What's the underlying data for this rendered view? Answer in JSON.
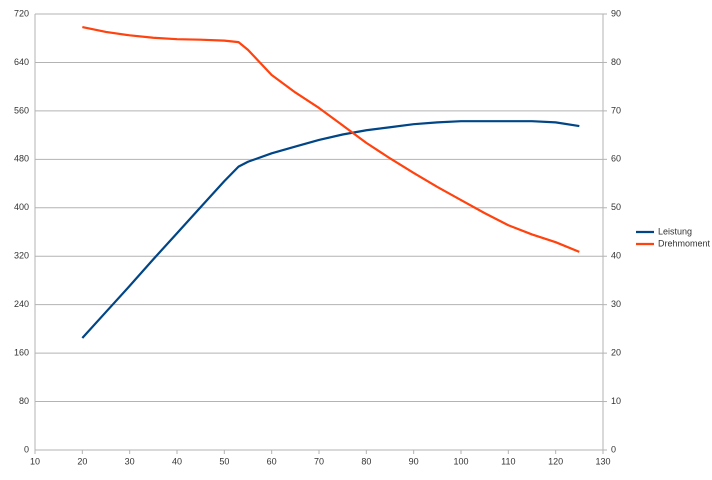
{
  "chart_data": {
    "type": "line",
    "x": [
      20,
      25,
      30,
      35,
      40,
      45,
      50,
      53,
      55,
      60,
      65,
      70,
      75,
      80,
      85,
      90,
      95,
      100,
      105,
      110,
      115,
      120,
      125
    ],
    "series": [
      {
        "name": "Leistung",
        "color": "#004586",
        "values": [
          185,
          228,
          271,
          315,
          358,
          401,
          444,
          468,
          476,
          490,
          501,
          512,
          521,
          528,
          533,
          538,
          541,
          543,
          543,
          543,
          543,
          541,
          535
        ]
      },
      {
        "name": "Drehmoment",
        "color": "#ff420e",
        "axis": "y2",
        "values": [
          87.3,
          86.3,
          85.6,
          85.1,
          84.8,
          84.7,
          84.5,
          84.2,
          82.6,
          77.4,
          73.8,
          70.6,
          67.0,
          63.4,
          60.2,
          57.2,
          54.3,
          51.6,
          48.9,
          46.4,
          44.5,
          42.9,
          40.9
        ]
      }
    ],
    "xlim": [
      10,
      130
    ],
    "xticks": [
      10,
      20,
      30,
      40,
      50,
      60,
      70,
      80,
      90,
      100,
      110,
      120,
      130
    ],
    "ylim": [
      0,
      720
    ],
    "yticks": [
      0,
      80,
      160,
      240,
      320,
      400,
      480,
      560,
      640,
      720
    ],
    "y2lim": [
      0,
      90
    ],
    "y2ticks": [
      0,
      10,
      20,
      30,
      40,
      50,
      60,
      70,
      80,
      90
    ],
    "grid": true,
    "legend": "right"
  }
}
